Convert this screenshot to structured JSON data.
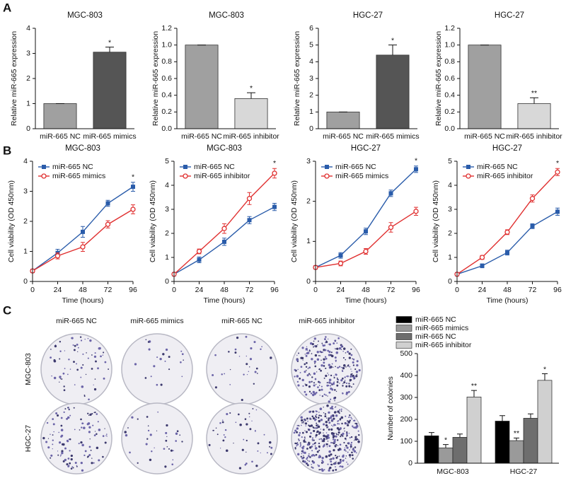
{
  "panel_labels": [
    "A",
    "B",
    "C"
  ],
  "colony_assay": {
    "columns": [
      "miR-665 NC",
      "miR-665 mimics",
      "miR-665 NC",
      "miR-665 inhibitor"
    ],
    "rows": [
      "MGC-803",
      "HGC-27"
    ]
  },
  "chart_data": [
    {
      "type": "bar",
      "title": "MGC-803",
      "y_label": "Relative miR-665 expression",
      "categories": [
        "miR-665 NC",
        "miR-665 mimics"
      ],
      "values": [
        1,
        3.05
      ],
      "errors": [
        0,
        0.2
      ],
      "colors": [
        "#a0a0a0",
        "#555555"
      ],
      "annotations": [
        null,
        "*"
      ],
      "ylim": [
        0,
        4
      ],
      "yticks": [
        0,
        1,
        2,
        3,
        4
      ]
    },
    {
      "type": "bar",
      "title": "MGC-803",
      "y_label": "Relative miR-665 expression",
      "categories": [
        "miR-665 NC",
        "miR-665 inhibitor"
      ],
      "values": [
        1,
        0.36
      ],
      "errors": [
        0,
        0.07
      ],
      "colors": [
        "#a0a0a0",
        "#d8d8d8"
      ],
      "annotations": [
        null,
        "*"
      ],
      "ylim": [
        0,
        1.2
      ],
      "yticks": [
        {
          "value": 0,
          "label": "0.0"
        },
        0.2,
        0.4,
        0.6,
        0.8,
        {
          "value": 1,
          "label": "1.0"
        },
        1.2
      ]
    },
    {
      "type": "bar",
      "title": "HGC-27",
      "y_label": "Relative miR-665 expression",
      "categories": [
        "miR-665 NC",
        "miR-665 mimics"
      ],
      "values": [
        1,
        4.4
      ],
      "errors": [
        0,
        0.6
      ],
      "colors": [
        "#a0a0a0",
        "#555555"
      ],
      "annotations": [
        null,
        "*"
      ],
      "ylim": [
        0,
        6
      ],
      "yticks": [
        0,
        1,
        2,
        3,
        4,
        5,
        6
      ]
    },
    {
      "type": "bar",
      "title": "HGC-27",
      "y_label": "Relative miR-665 expression",
      "categories": [
        "miR-665 NC",
        "miR-665 inhibitor"
      ],
      "values": [
        1,
        0.3
      ],
      "errors": [
        0,
        0.07
      ],
      "colors": [
        "#a0a0a0",
        "#d8d8d8"
      ],
      "annotations": [
        null,
        "**"
      ],
      "ylim": [
        0,
        1.2
      ],
      "yticks": [
        {
          "value": 0,
          "label": "0.0"
        },
        0.2,
        0.4,
        0.6,
        0.8,
        {
          "value": 1,
          "label": "1.0"
        },
        1.2
      ]
    },
    {
      "type": "line",
      "title": "MGC-803",
      "x_label": "Time (hours)",
      "y_label": "Cell viability (OD 450nm)",
      "x": [
        0,
        24,
        48,
        72,
        96
      ],
      "xlim": [
        0,
        96
      ],
      "xticks": [
        0,
        24,
        48,
        72,
        96
      ],
      "ylim": [
        0,
        4
      ],
      "yticks": [
        0,
        1,
        2,
        3,
        4
      ],
      "annotation": "*",
      "series": [
        {
          "name": "miR-665 NC",
          "color": "#2a5caa",
          "marker": "square",
          "values": [
            0.35,
            0.95,
            1.65,
            2.6,
            3.15
          ],
          "errors": [
            0.05,
            0.12,
            0.18,
            0.1,
            0.15
          ]
        },
        {
          "name": "miR-665 mimics",
          "color": "#e03030",
          "marker": "circle",
          "values": [
            0.35,
            0.85,
            1.15,
            1.9,
            2.4
          ],
          "errors": [
            0.05,
            0.1,
            0.15,
            0.12,
            0.15
          ]
        }
      ]
    },
    {
      "type": "line",
      "title": "MGC-803",
      "x_label": "Time (hours)",
      "y_label": "Cell viability (OD 450nm)",
      "x": [
        0,
        24,
        48,
        72,
        96
      ],
      "xlim": [
        0,
        96
      ],
      "xticks": [
        0,
        24,
        48,
        72,
        96
      ],
      "ylim": [
        0,
        5
      ],
      "yticks": [
        0,
        1,
        2,
        3,
        4,
        5
      ],
      "annotation": "*",
      "series": [
        {
          "name": "miR-665 NC",
          "color": "#2a5caa",
          "marker": "square",
          "values": [
            0.3,
            0.9,
            1.65,
            2.55,
            3.1
          ],
          "errors": [
            0.05,
            0.12,
            0.15,
            0.15,
            0.15
          ]
        },
        {
          "name": "miR-665 inhibitor",
          "color": "#e03030",
          "marker": "circle",
          "values": [
            0.3,
            1.25,
            2.2,
            3.45,
            4.5
          ],
          "errors": [
            0.05,
            0.1,
            0.2,
            0.25,
            0.2
          ]
        }
      ]
    },
    {
      "type": "line",
      "title": "HGC-27",
      "x_label": "Time (hours)",
      "y_label": "Cell viability (OD 450nm)",
      "x": [
        0,
        24,
        48,
        72,
        96
      ],
      "xlim": [
        0,
        96
      ],
      "xticks": [
        0,
        24,
        48,
        72,
        96
      ],
      "ylim": [
        0,
        3
      ],
      "yticks": [
        0,
        1,
        2,
        3
      ],
      "annotation": "*",
      "series": [
        {
          "name": "miR-665 NC",
          "color": "#2a5caa",
          "marker": "square",
          "values": [
            0.35,
            0.65,
            1.25,
            2.2,
            2.8
          ],
          "errors": [
            0.04,
            0.07,
            0.08,
            0.08,
            0.08
          ]
        },
        {
          "name": "miR-665 mimics",
          "color": "#e03030",
          "marker": "circle",
          "values": [
            0.35,
            0.45,
            0.75,
            1.35,
            1.75
          ],
          "errors": [
            0.04,
            0.06,
            0.07,
            0.12,
            0.1
          ]
        }
      ]
    },
    {
      "type": "line",
      "title": "HGC-27",
      "x_label": "Time (hours)",
      "y_label": "Cell viability (OD 450nm)",
      "x": [
        0,
        24,
        48,
        72,
        96
      ],
      "xlim": [
        0,
        96
      ],
      "xticks": [
        0,
        24,
        48,
        72,
        96
      ],
      "ylim": [
        0,
        5
      ],
      "yticks": [
        0,
        1,
        2,
        3,
        4,
        5
      ],
      "annotation": "*",
      "series": [
        {
          "name": "miR-665 NC",
          "color": "#2a5caa",
          "marker": "square",
          "values": [
            0.3,
            0.65,
            1.2,
            2.3,
            2.9
          ],
          "errors": [
            0.04,
            0.08,
            0.1,
            0.1,
            0.15
          ]
        },
        {
          "name": "miR-665 inhibitor",
          "color": "#e03030",
          "marker": "circle",
          "values": [
            0.3,
            1.0,
            2.05,
            3.45,
            4.55
          ],
          "errors": [
            0.04,
            0.08,
            0.1,
            0.15,
            0.15
          ]
        }
      ]
    },
    {
      "type": "grouped_bar",
      "y_label": "Number of colonies",
      "categories": [
        "MGC-803",
        "HGC-27"
      ],
      "ylim": [
        0,
        500
      ],
      "yticks": [
        0,
        100,
        200,
        300,
        400,
        500
      ],
      "series": [
        {
          "name": "miR-665 NC",
          "color": "#000000",
          "values": [
            125,
            192
          ],
          "errors": [
            15,
            25
          ],
          "annotations": [
            null,
            null
          ]
        },
        {
          "name": "miR-665 mimics",
          "color": "#9a9a9a",
          "values": [
            70,
            103
          ],
          "errors": [
            15,
            12
          ],
          "annotations": [
            "*",
            "**"
          ]
        },
        {
          "name": "miR-665 NC",
          "color": "#6e6e6e",
          "values": [
            118,
            205
          ],
          "errors": [
            15,
            20
          ],
          "annotations": [
            null,
            null
          ]
        },
        {
          "name": "miR-665 inhibitor",
          "color": "#d0d0d0",
          "values": [
            302,
            378
          ],
          "errors": [
            30,
            30
          ],
          "annotations": [
            "**",
            "*"
          ]
        }
      ]
    }
  ]
}
